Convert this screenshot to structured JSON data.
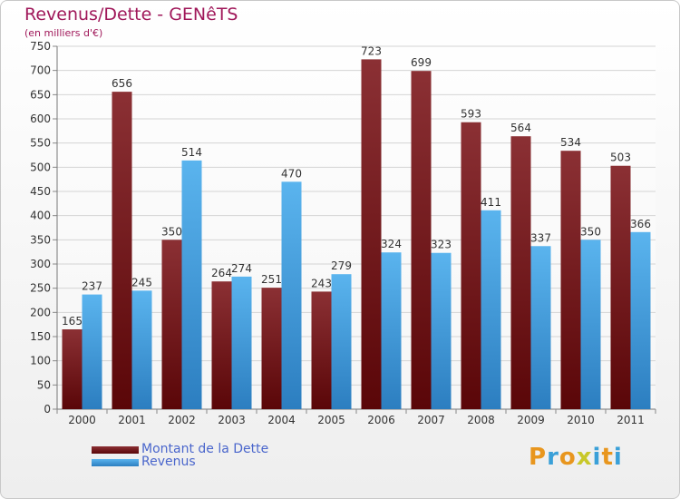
{
  "header": {
    "title": "Revenus/Dette - GENêTS",
    "subtitle": "(en milliers d'€)"
  },
  "legend": {
    "items": [
      {
        "label": "Montant de la Dette",
        "color": "#6b0f14"
      },
      {
        "label": "Revenus",
        "color": "#3ea0e6"
      }
    ],
    "placement": "bottom-left"
  },
  "logo": {
    "text": "Proxiti"
  },
  "colors": {
    "title": "#a0185a",
    "dette_top": "#8b3034",
    "dette_bottom": "#5a0608",
    "revenus_top": "#5ab4ee",
    "revenus_bottom": "#2c7ec0",
    "label": "#333333"
  },
  "chart_data": {
    "type": "bar",
    "title": "Revenus/Dette - GENêTS",
    "subtitle": "(en milliers d'€)",
    "categories": [
      "2000",
      "2001",
      "2002",
      "2003",
      "2004",
      "2005",
      "2006",
      "2007",
      "2008",
      "2009",
      "2010",
      "2011"
    ],
    "series": [
      {
        "name": "Montant de la Dette",
        "values": [
          165,
          656,
          350,
          264,
          251,
          243,
          723,
          699,
          593,
          564,
          534,
          503
        ]
      },
      {
        "name": "Revenus",
        "values": [
          237,
          245,
          514,
          274,
          470,
          279,
          324,
          323,
          411,
          337,
          350,
          366
        ]
      }
    ],
    "ylim": [
      0,
      750
    ],
    "yticks": [
      0,
      50,
      100,
      150,
      200,
      250,
      300,
      350,
      400,
      450,
      500,
      550,
      600,
      650,
      700,
      750
    ],
    "grid": true,
    "legend": "bottom-left"
  }
}
